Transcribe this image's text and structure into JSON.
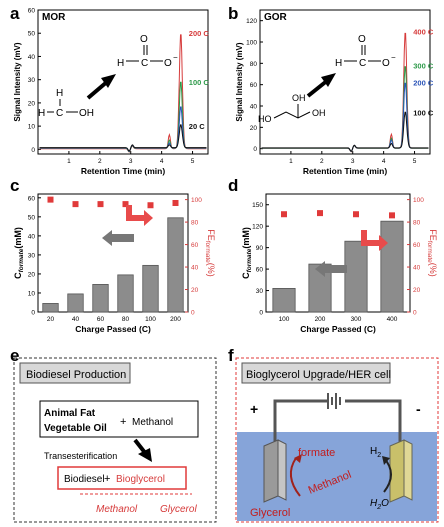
{
  "panels": {
    "a": "a",
    "b": "b",
    "c": "c",
    "d": "d",
    "e": "e",
    "f": "f"
  },
  "colors": {
    "red": "#d63b3b",
    "green": "#2e9a4a",
    "blue": "#2c55b8",
    "black": "#111111",
    "bar": "#8c8c8c",
    "marker": "#e03a3a",
    "arrow_gray": "#777777",
    "arrow_red": "#e84b4b",
    "water": "#86a4d9"
  },
  "chart_data": [
    {
      "id": "a",
      "type": "line",
      "title": "MOR",
      "xlabel": "Retention Time (min)",
      "ylabel": "Signal Intensity (mV)",
      "xlim": [
        0,
        5.5
      ],
      "ylim": [
        -2,
        60
      ],
      "xticks": [
        1,
        2,
        3,
        4,
        5
      ],
      "yticks": [
        0,
        10,
        20,
        30,
        40,
        50,
        60
      ],
      "series": [
        {
          "name": "200 C",
          "color": "#d63b3b",
          "peak": 50
        },
        {
          "name": "100 C",
          "color": "#2e9a4a",
          "peak": 29
        },
        {
          "name": "",
          "color": "#2c55b8",
          "peak": 18
        },
        {
          "name": "20 C",
          "color": "#111111",
          "peak": 10
        }
      ],
      "peak_x": 4.62
    },
    {
      "id": "b",
      "type": "line",
      "title": "GOR",
      "xlabel": "Retention Time (min)",
      "ylabel": "Signal Intensity (mV)",
      "xlim": [
        0,
        5.5
      ],
      "ylim": [
        -5,
        130
      ],
      "xticks": [
        1,
        2,
        3,
        4,
        5
      ],
      "yticks": [
        0,
        20,
        40,
        60,
        80,
        100,
        120
      ],
      "series": [
        {
          "name": "400 C",
          "color": "#d63b3b",
          "peak": 110
        },
        {
          "name": "300 C",
          "color": "#2e9a4a",
          "peak": 78
        },
        {
          "name": "200 C",
          "color": "#2c55b8",
          "peak": 62
        },
        {
          "name": "100 C",
          "color": "#111111",
          "peak": 34
        }
      ],
      "peak_x": 4.7
    },
    {
      "id": "c",
      "type": "bar",
      "xlabel": "Charge Passed (C)",
      "ylabel_main": "C",
      "ylabel_sub": "formate",
      "ylabel_unit": "(mM)",
      "y2label_main": "FE",
      "y2label_sub": "formate",
      "y2label_unit": "(%)",
      "categories": [
        "20",
        "40",
        "60",
        "80",
        "100",
        "200"
      ],
      "values": [
        4.5,
        9.5,
        14.5,
        19.5,
        24.5,
        49.5
      ],
      "fe": [
        100,
        96,
        96,
        96,
        95,
        97
      ],
      "ylim": [
        0,
        62
      ],
      "yticks": [
        0,
        10,
        20,
        30,
        40,
        50,
        60
      ],
      "y2lim": [
        0,
        105
      ],
      "y2ticks": [
        0,
        20,
        40,
        60,
        80,
        100
      ]
    },
    {
      "id": "d",
      "type": "bar",
      "xlabel": "Charge Passed (C)",
      "ylabel_main": "C",
      "ylabel_sub": "formate",
      "ylabel_unit": "(mM)",
      "y2label_main": "FE",
      "y2label_sub": "formate",
      "y2label_unit": "(%)",
      "categories": [
        "100",
        "200",
        "300",
        "400"
      ],
      "values": [
        33,
        67,
        99,
        127
      ],
      "fe": [
        87,
        88,
        87,
        86
      ],
      "ylim": [
        0,
        165
      ],
      "yticks": [
        0,
        30,
        60,
        90,
        120,
        150
      ],
      "y2lim": [
        0,
        105
      ],
      "y2ticks": [
        0,
        20,
        40,
        60,
        80,
        100
      ]
    }
  ],
  "molecules": {
    "a_formate_o": "O",
    "a_formate_h": "H",
    "a_formate_c": "C",
    "a_formate_om": "O",
    "a_methanol_h1": "H",
    "a_methanol_h2": "H",
    "a_methanol_c": "C",
    "a_methanol_oh": "OH",
    "b_glycerol_ho1": "HO",
    "b_glycerol_oh2": "OH",
    "b_glycerol_oh3": "OH"
  },
  "panel_e": {
    "title": "Biodiesel Production",
    "feed1": "Animal Fat",
    "feed2": "Vegetable Oil",
    "plus1": "+",
    "feed3": "Methanol",
    "process": "Transesterification",
    "prod1": "Biodiesel",
    "plus2": "+",
    "prod2": "Bioglycerol",
    "sub1": "Methanol",
    "sub2": "Glycerol"
  },
  "panel_f": {
    "title": "Bioglycerol Upgrade/HER cell",
    "plus": "+",
    "minus": "-",
    "formate": "formate",
    "methanol": "Methanol",
    "glycerol": "Glycerol",
    "h2": "H",
    "h2_sub": "2",
    "h2o": "H",
    "h2o_sub": "2",
    "h2o_o": "O"
  }
}
